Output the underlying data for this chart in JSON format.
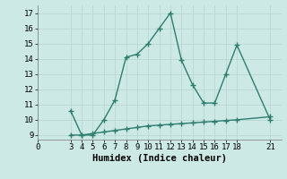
{
  "x_main": [
    3,
    4,
    5,
    6,
    7,
    8,
    9,
    10,
    11,
    12,
    13,
    14,
    15,
    16,
    17,
    18,
    21
  ],
  "y_main": [
    10.6,
    9.0,
    9.0,
    10.0,
    11.3,
    14.1,
    14.3,
    15.0,
    16.0,
    17.0,
    13.9,
    12.3,
    11.1,
    11.1,
    13.0,
    14.9,
    10.0
  ],
  "x_flat": [
    3,
    4,
    5,
    6,
    7,
    8,
    9,
    10,
    11,
    12,
    13,
    14,
    15,
    16,
    17,
    18,
    21
  ],
  "y_flat": [
    9.0,
    9.0,
    9.1,
    9.2,
    9.3,
    9.4,
    9.5,
    9.6,
    9.65,
    9.7,
    9.75,
    9.8,
    9.85,
    9.9,
    9.95,
    10.0,
    10.2
  ],
  "line_color": "#2e7d6e",
  "bg_color": "#cce9e5",
  "grid_color": "#b8d8d4",
  "xlabel": "Humidex (Indice chaleur)",
  "xlim": [
    0,
    22
  ],
  "ylim": [
    8.7,
    17.5
  ],
  "yticks": [
    9,
    10,
    11,
    12,
    13,
    14,
    15,
    16,
    17
  ],
  "xticks": [
    0,
    3,
    4,
    5,
    6,
    7,
    8,
    9,
    10,
    11,
    12,
    13,
    14,
    15,
    16,
    17,
    18,
    21
  ],
  "marker": "+",
  "markersize": 4,
  "linewidth": 1.0,
  "xlabel_fontsize": 7.5,
  "tick_fontsize": 6.5
}
